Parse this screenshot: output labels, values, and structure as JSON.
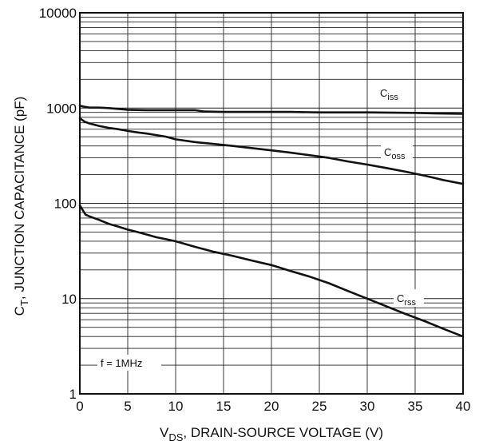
{
  "chart_data": {
    "type": "line",
    "xlabel_main": "V",
    "xlabel_sub": "DS",
    "xlabel_rest": ", DRAIN-SOURCE VOLTAGE (V)",
    "ylabel_main": "C",
    "ylabel_sub": "T",
    "ylabel_rest": ", JUNCTION CAPACITANCE (pF)",
    "xlim": [
      0,
      40
    ],
    "ylim": [
      1,
      10000
    ],
    "yscale": "log",
    "grid": true,
    "x_ticks": [
      "0",
      "5",
      "10",
      "15",
      "20",
      "25",
      "30",
      "35",
      "40"
    ],
    "y_ticks": [
      "1",
      "10",
      "100",
      "1000",
      "10000"
    ],
    "note": "f = 1MHz",
    "series": [
      {
        "label_main": "C",
        "label_sub": "iss",
        "x": [
          0,
          0.5,
          1,
          2,
          3,
          4,
          5,
          7,
          10,
          12,
          13,
          15,
          20,
          22,
          25,
          30,
          35,
          37,
          40
        ],
        "y": [
          1060,
          1030,
          1010,
          1010,
          1000,
          980,
          960,
          950,
          950,
          950,
          920,
          910,
          910,
          910,
          900,
          900,
          890,
          880,
          870
        ]
      },
      {
        "label_main": "C",
        "label_sub": "oss",
        "x": [
          0,
          0.5,
          1,
          2,
          3,
          4,
          5,
          6,
          7,
          8,
          9,
          10,
          12,
          14,
          16,
          18,
          20,
          22,
          24,
          26,
          28,
          30,
          32,
          34,
          36,
          38,
          40
        ],
        "y": [
          780,
          720,
          690,
          650,
          620,
          600,
          575,
          555,
          540,
          520,
          500,
          470,
          440,
          420,
          400,
          380,
          360,
          340,
          320,
          300,
          275,
          255,
          235,
          215,
          195,
          175,
          160
        ]
      },
      {
        "label_main": "C",
        "label_sub": "rss",
        "x": [
          0,
          0.3,
          0.6,
          1,
          2,
          3,
          4,
          5,
          6,
          7,
          8,
          9,
          10,
          12,
          14,
          16,
          18,
          20,
          22,
          24,
          26,
          28,
          30,
          32,
          34,
          36,
          38,
          40
        ],
        "y": [
          95,
          85,
          76,
          73,
          67,
          61,
          57,
          53,
          50,
          47,
          44,
          42,
          40,
          35,
          31,
          28,
          25,
          22.5,
          19.5,
          17,
          14.5,
          12,
          10,
          8.3,
          6.9,
          5.8,
          4.8,
          4.0
        ]
      }
    ]
  }
}
